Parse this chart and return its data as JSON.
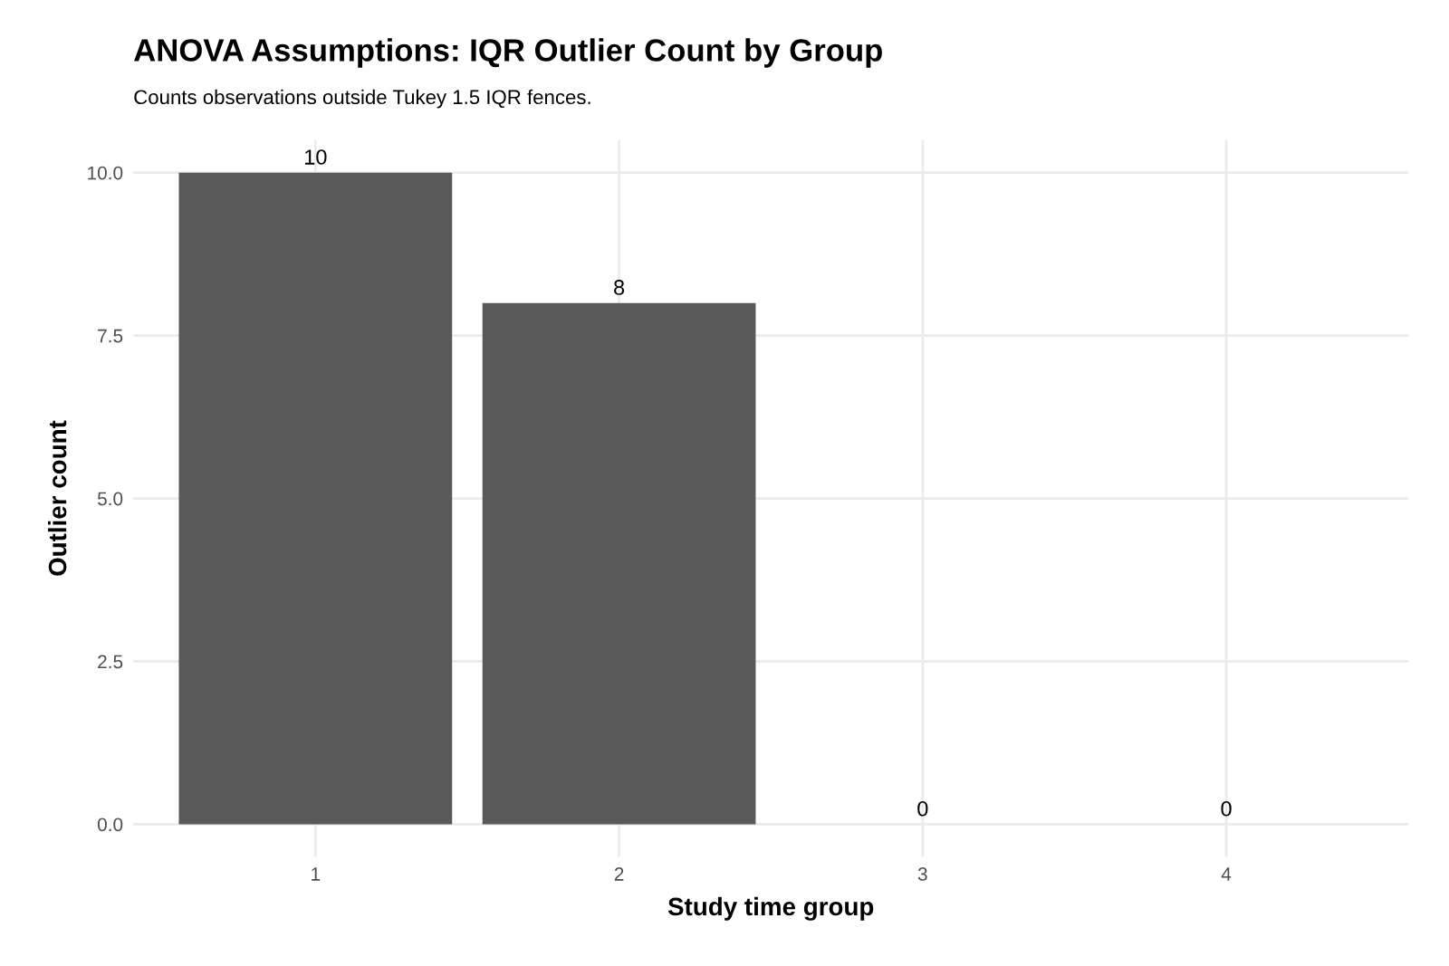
{
  "chart_data": {
    "type": "bar",
    "title": "ANOVA Assumptions: IQR Outlier Count by Group",
    "subtitle": "Counts observations outside Tukey 1.5 IQR fences.",
    "xlabel": "Study time group",
    "ylabel": "Outlier count",
    "categories": [
      "1",
      "2",
      "3",
      "4"
    ],
    "values": [
      10,
      8,
      0,
      0
    ],
    "color": "#595959",
    "ylim": [
      -0.5,
      10.5
    ],
    "yticks": [
      {
        "value": 0,
        "label": "0.0"
      },
      {
        "value": 2.5,
        "label": "2.5"
      },
      {
        "value": 5,
        "label": "5.0"
      },
      {
        "value": 7.5,
        "label": "7.5"
      },
      {
        "value": 10,
        "label": "10.0"
      }
    ],
    "grid": true,
    "data_labels": true
  }
}
